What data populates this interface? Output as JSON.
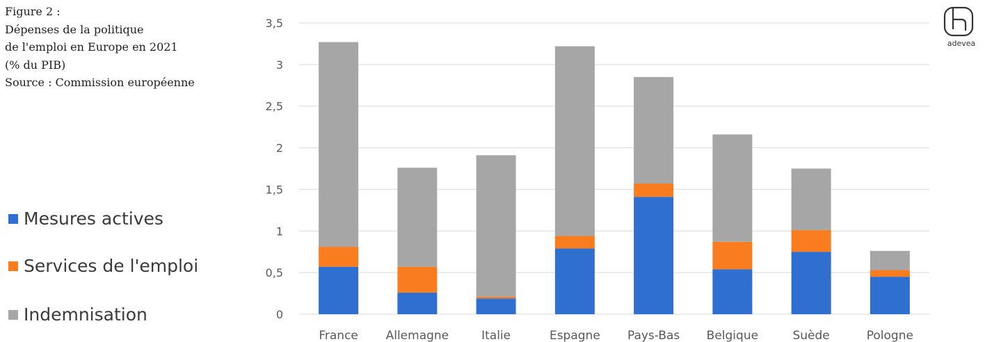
{
  "figure": {
    "title_lines": [
      "Figure 2 :",
      "Dépenses de la politique",
      "de l'emploi en Europe en 2021",
      "(% du PIB)",
      "Source : Commission européenne"
    ]
  },
  "logo": {
    "icon": "adevea-logo-icon",
    "text": "adevea"
  },
  "legend": [
    {
      "label": "Mesures actives",
      "color": "#2e6fd0"
    },
    {
      "label": "Services de l'emploi",
      "color": "#f97c1e"
    },
    {
      "label": "Indemnisation",
      "color": "#a6a6a6"
    }
  ],
  "chart_data": {
    "type": "bar",
    "stacked": true,
    "categories": [
      "France",
      "Allemagne",
      "Italie",
      "Espagne",
      "Pays-Bas",
      "Belgique",
      "Suède",
      "Pologne"
    ],
    "series": [
      {
        "name": "Mesures actives",
        "color": "#2e6fd0",
        "values": [
          0.57,
          0.26,
          0.19,
          0.79,
          1.41,
          0.54,
          0.75,
          0.45
        ]
      },
      {
        "name": "Services de l'emploi",
        "color": "#f97c1e",
        "values": [
          0.24,
          0.31,
          0.02,
          0.15,
          0.16,
          0.33,
          0.26,
          0.08
        ]
      },
      {
        "name": "Indemnisation",
        "color": "#a6a6a6",
        "values": [
          2.46,
          1.19,
          1.7,
          2.28,
          1.28,
          1.29,
          0.74,
          0.23
        ]
      }
    ],
    "yticks": [
      "0",
      "0,5",
      "1",
      "1,5",
      "2",
      "2,5",
      "3",
      "3,5"
    ],
    "ylim": [
      0,
      3.5
    ],
    "grid": true,
    "legend_position": "left"
  }
}
